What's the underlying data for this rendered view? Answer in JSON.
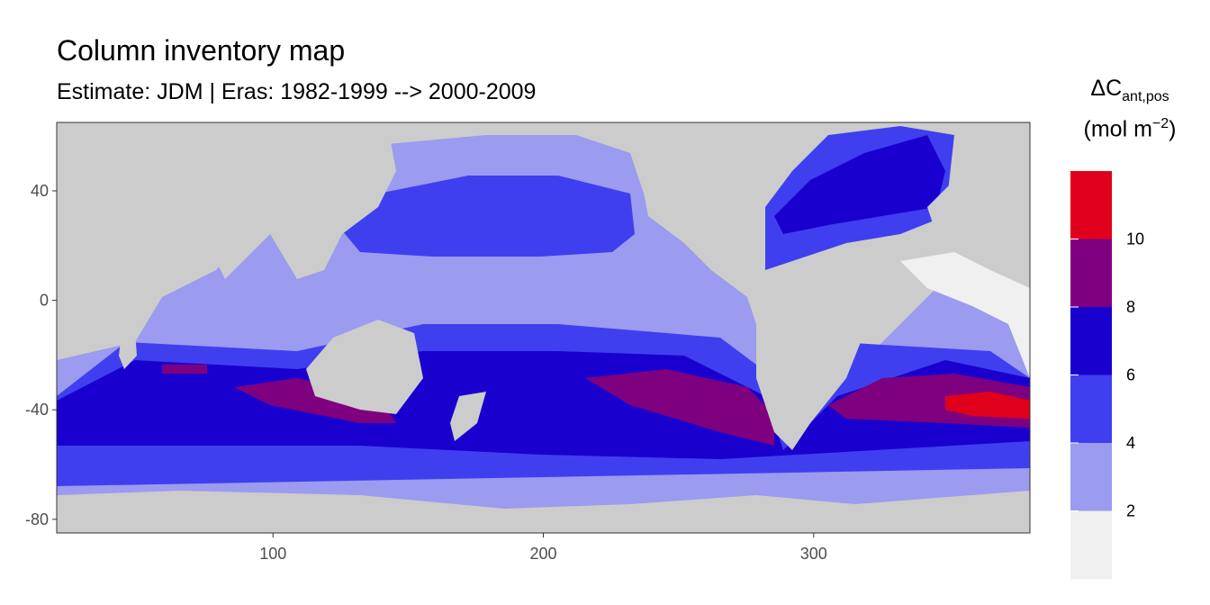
{
  "chart_data": {
    "type": "heatmap",
    "title": "Column inventory map",
    "subtitle": "Estimate: JDM  | Eras: 1982-1999 --> 2000-2009",
    "xlabel": "",
    "ylabel": "",
    "xlim": [
      20,
      380
    ],
    "ylim": [
      -85,
      65
    ],
    "x_ticks": [
      "100",
      "200",
      "300"
    ],
    "y_ticks": [
      "40",
      "0",
      "-40",
      "-80"
    ],
    "legend": {
      "title": "ΔC",
      "title_subscript": "ant,pos",
      "unit_prefix": "(mol m",
      "unit_exponent": "−2",
      "unit_suffix": ")",
      "placement": "right",
      "breaks": [
        "2",
        "4",
        "6",
        "8",
        "10"
      ],
      "bins": [
        {
          "range": "<2",
          "color": "#f0f0f0"
        },
        {
          "range": "2-4",
          "color": "#9b9bef"
        },
        {
          "range": "4-6",
          "color": "#3f3fef"
        },
        {
          "range": "6-8",
          "color": "#1a00cf"
        },
        {
          "range": "8-10",
          "color": "#7f007f"
        },
        {
          "range": ">10",
          "color": "#e0001b"
        }
      ]
    },
    "land_color": "#cccccc"
  }
}
